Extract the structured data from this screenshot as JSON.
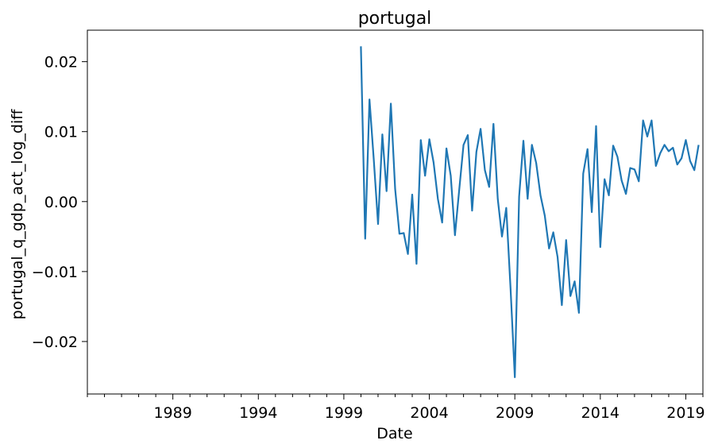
{
  "chart_data": {
    "type": "line",
    "title": "portugal",
    "xlabel": "Date",
    "ylabel": "portugal_q_gdp_act_log_diff",
    "x_ticks": [
      "1989",
      "1994",
      "1999",
      "2004",
      "2009",
      "2014",
      "2019"
    ],
    "y_ticks": [
      "−0.02",
      "−0.01",
      "0.00",
      "0.01",
      "0.02"
    ],
    "xlim": [
      "1984-01",
      "2020-01"
    ],
    "ylim": [
      -0.0275,
      0.0245
    ],
    "grid": false,
    "line_color": "#1f77b4",
    "series": [
      {
        "x": [
          "2000-Q1",
          "2000-Q2",
          "2000-Q3",
          "2000-Q4",
          "2001-Q1",
          "2001-Q2",
          "2001-Q3",
          "2001-Q4",
          "2002-Q1",
          "2002-Q2",
          "2002-Q3",
          "2002-Q4",
          "2003-Q1",
          "2003-Q2",
          "2003-Q3",
          "2003-Q4",
          "2004-Q1",
          "2004-Q2",
          "2004-Q3",
          "2004-Q4",
          "2005-Q1",
          "2005-Q2",
          "2005-Q3",
          "2005-Q4",
          "2006-Q1",
          "2006-Q2",
          "2006-Q3",
          "2006-Q4",
          "2007-Q1",
          "2007-Q2",
          "2007-Q3",
          "2007-Q4",
          "2008-Q1",
          "2008-Q2",
          "2008-Q3",
          "2008-Q4",
          "2009-Q1",
          "2009-Q2",
          "2009-Q3",
          "2009-Q4",
          "2010-Q1",
          "2010-Q2",
          "2010-Q3",
          "2010-Q4",
          "2011-Q1",
          "2011-Q2",
          "2011-Q3",
          "2011-Q4",
          "2012-Q1",
          "2012-Q2",
          "2012-Q3",
          "2012-Q4",
          "2013-Q1",
          "2013-Q2",
          "2013-Q3",
          "2013-Q4",
          "2014-Q1",
          "2014-Q2",
          "2014-Q3",
          "2014-Q4",
          "2015-Q1",
          "2015-Q2",
          "2015-Q3",
          "2015-Q4",
          "2016-Q1",
          "2016-Q2",
          "2016-Q3",
          "2016-Q4",
          "2017-Q1",
          "2017-Q2",
          "2017-Q3",
          "2017-Q4",
          "2018-Q1",
          "2018-Q2",
          "2018-Q3",
          "2018-Q4",
          "2019-Q1",
          "2019-Q2",
          "2019-Q3",
          "2019-Q4"
        ],
        "values": [
          0.0222,
          -0.0053,
          0.0146,
          0.006,
          -0.0032,
          0.0096,
          0.0015,
          0.014,
          0.0018,
          -0.0046,
          -0.0045,
          -0.0075,
          0.001,
          -0.0089,
          0.0088,
          0.0037,
          0.0089,
          0.0056,
          0.0004,
          -0.003,
          0.0076,
          0.0037,
          -0.0048,
          0.0017,
          0.0081,
          0.0095,
          -0.0013,
          0.0071,
          0.0104,
          0.0045,
          0.0021,
          0.0111,
          0.0004,
          -0.005,
          -0.0009,
          -0.0124,
          -0.0251,
          0.0007,
          0.0087,
          0.0004,
          0.0081,
          0.0055,
          0.0009,
          -0.002,
          -0.0067,
          -0.0044,
          -0.0079,
          -0.0148,
          -0.0055,
          -0.0135,
          -0.0114,
          -0.0159,
          0.004,
          0.0075,
          -0.0015,
          0.0108,
          -0.0065,
          0.0032,
          0.0009,
          0.008,
          0.0064,
          0.003,
          0.0011,
          0.0048,
          0.0046,
          0.0029,
          0.0116,
          0.0093,
          0.0116,
          0.0051,
          0.0069,
          0.0081,
          0.0072,
          0.0077,
          0.0053,
          0.0062,
          0.0088,
          0.0058,
          0.0045,
          0.0081
        ]
      }
    ]
  }
}
